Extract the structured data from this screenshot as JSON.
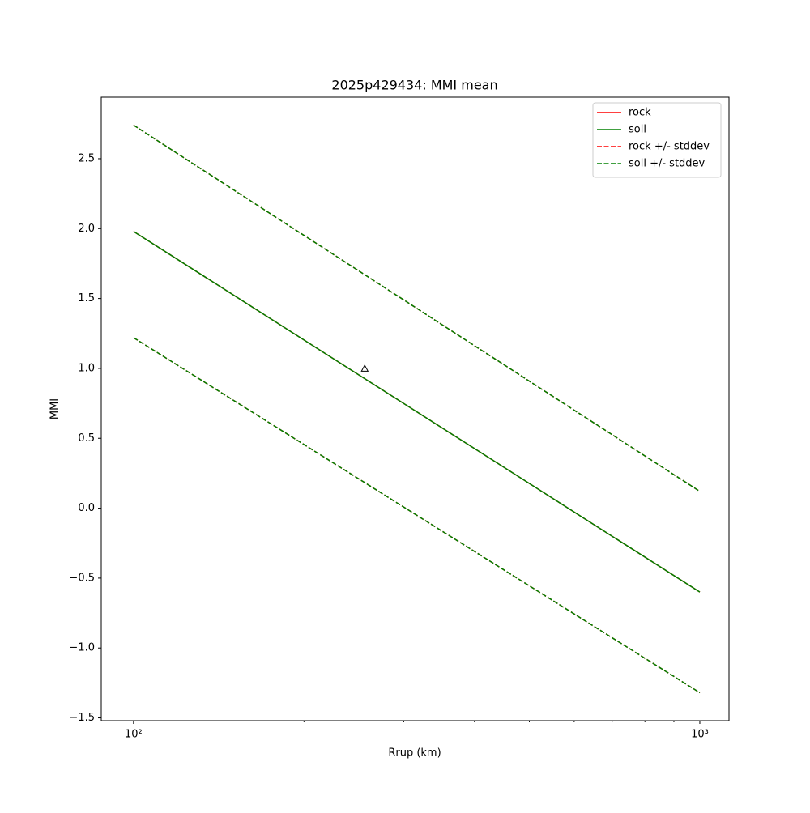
{
  "chart_data": {
    "type": "line",
    "title": "2025p429434: MMI mean",
    "x_label": "Rrup (km)",
    "y_label": "MMI",
    "x_scale": "log",
    "xlim": [
      87.7,
      1126
    ],
    "ylim": [
      -1.52,
      2.94
    ],
    "xticks": [
      {
        "value": 100,
        "label": "10²"
      },
      {
        "value": 1000,
        "label": "10³"
      }
    ],
    "xminorticks": [
      200,
      300,
      400,
      500,
      600,
      700,
      800,
      900
    ],
    "yticks": [
      {
        "value": -1.5,
        "label": "−1.5"
      },
      {
        "value": -1,
        "label": "−1.0"
      },
      {
        "value": -0.5,
        "label": "−0.5"
      },
      {
        "value": 0,
        "label": "0.0"
      },
      0.5,
      {
        "value": 1,
        "label": "1.0"
      },
      1.5,
      {
        "value": 2,
        "label": "2.0"
      },
      2.5
    ],
    "x": [
      100,
      1000
    ],
    "series": [
      {
        "name": "rock",
        "color": "#ff0000",
        "dash": false,
        "values": [
          1.98,
          -0.6
        ]
      },
      {
        "name": "soil",
        "color": "#008000",
        "dash": false,
        "values": [
          1.98,
          -0.6
        ]
      },
      {
        "name": "rock +/- stddev",
        "color": "#ff0000",
        "dash": true,
        "upper": [
          2.74,
          0.12
        ],
        "lower": [
          1.22,
          -1.32
        ]
      },
      {
        "name": "soil +/- stddev",
        "color": "#008000",
        "dash": true,
        "upper": [
          2.74,
          0.12
        ],
        "lower": [
          1.22,
          -1.32
        ]
      }
    ],
    "points": {
      "x": [
        256
      ],
      "values": [
        1.0
      ]
    },
    "legend": "upper right"
  }
}
